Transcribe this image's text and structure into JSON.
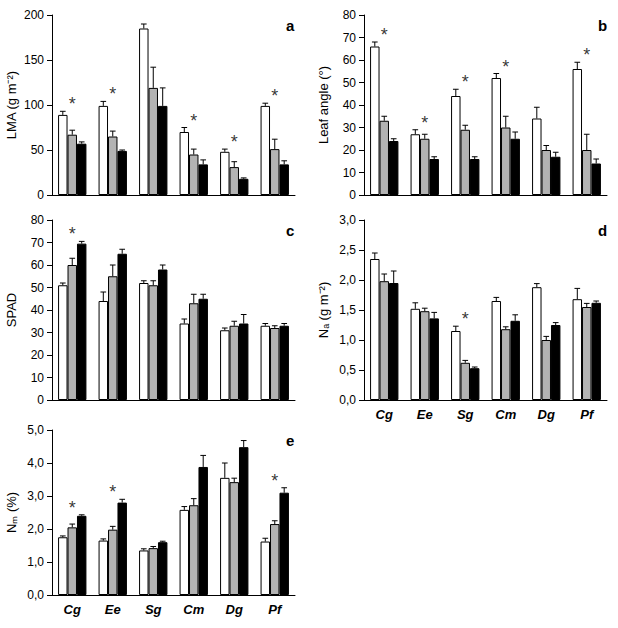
{
  "chart_data": [
    {
      "type": "bar",
      "title": "a",
      "ylabel": "LMA (g m⁻²)",
      "categories": [
        "Cg",
        "Ee",
        "Sg",
        "Cm",
        "Dg",
        "Pf"
      ],
      "series": [
        {
          "color": "#ffffff",
          "values": [
            89,
            99,
            185,
            70,
            48,
            99
          ],
          "errors": [
            4,
            5,
            5,
            5,
            3,
            3
          ]
        },
        {
          "color": "#b3b3b3",
          "values": [
            67,
            65,
            119,
            45,
            31,
            51
          ],
          "errors": [
            5,
            6,
            23,
            6,
            6,
            11
          ]
        },
        {
          "color": "#000000",
          "values": [
            57,
            49,
            99,
            34,
            18,
            34
          ],
          "errors": [
            2,
            1,
            20,
            5,
            1,
            4
          ]
        }
      ],
      "annotations": [
        {
          "category": "Cg",
          "text": "*"
        },
        {
          "category": "Ee",
          "text": "*"
        },
        {
          "category": "Cm",
          "text": "*"
        },
        {
          "category": "Dg",
          "text": "*"
        },
        {
          "category": "Pf",
          "text": "*"
        }
      ],
      "ylim": [
        0,
        200
      ],
      "yticks": [
        0,
        50,
        100,
        150,
        200
      ],
      "grid": false,
      "tick_labels": "y"
    },
    {
      "type": "bar",
      "title": "b",
      "ylabel": "Leaf angle (°)",
      "categories": [
        "Cg",
        "Ee",
        "Sg",
        "Cm",
        "Dg",
        "Pf"
      ],
      "series": [
        {
          "color": "#ffffff",
          "values": [
            66,
            27,
            44,
            52,
            34,
            56
          ],
          "errors": [
            2,
            2,
            3,
            2,
            5,
            3
          ]
        },
        {
          "color": "#b3b3b3",
          "values": [
            33,
            25,
            29,
            30,
            20,
            20
          ],
          "errors": [
            2,
            2,
            2,
            5,
            2,
            7
          ]
        },
        {
          "color": "#000000",
          "values": [
            24,
            16,
            16,
            25,
            17,
            14
          ],
          "errors": [
            1,
            1,
            1,
            3,
            2,
            2
          ]
        }
      ],
      "annotations": [
        {
          "category": "Cg",
          "text": "*"
        },
        {
          "category": "Ee",
          "text": "*"
        },
        {
          "category": "Sg",
          "text": "*"
        },
        {
          "category": "Cm",
          "text": "*"
        },
        {
          "category": "Pf",
          "text": "*"
        }
      ],
      "ylim": [
        0,
        80
      ],
      "yticks": [
        0,
        10,
        20,
        30,
        40,
        50,
        60,
        70,
        80
      ],
      "grid": false,
      "tick_labels": "y"
    },
    {
      "type": "bar",
      "title": "c",
      "ylabel": "SPAD",
      "categories": [
        "Cg",
        "Ee",
        "Sg",
        "Cm",
        "Dg",
        "Pf"
      ],
      "series": [
        {
          "color": "#ffffff",
          "values": [
            51,
            44,
            52,
            34,
            31,
            33
          ],
          "errors": [
            1,
            4,
            1,
            2,
            1,
            1
          ]
        },
        {
          "color": "#b3b3b3",
          "values": [
            60,
            55,
            51,
            43,
            33,
            32
          ],
          "errors": [
            3,
            5,
            2,
            4,
            2,
            1
          ]
        },
        {
          "color": "#000000",
          "values": [
            69.5,
            65,
            58,
            45,
            34,
            33
          ],
          "errors": [
            1,
            2,
            2,
            2,
            4,
            1
          ]
        }
      ],
      "annotations": [
        {
          "category": "Cg",
          "text": "*"
        }
      ],
      "ylim": [
        0,
        80
      ],
      "yticks": [
        0,
        10,
        20,
        30,
        40,
        50,
        60,
        70,
        80
      ],
      "grid": false,
      "tick_labels": "y"
    },
    {
      "type": "bar",
      "title": "d",
      "ylabel": "Nₐ (g m⁻²)",
      "categories": [
        "Cg",
        "Ee",
        "Sg",
        "Cm",
        "Dg",
        "Pf"
      ],
      "series": [
        {
          "color": "#ffffff",
          "values": [
            2.35,
            1.52,
            1.15,
            1.65,
            1.88,
            1.68
          ],
          "errors": [
            0.1,
            0.1,
            0.08,
            0.06,
            0.06,
            0.18
          ]
        },
        {
          "color": "#b3b3b3",
          "values": [
            1.98,
            1.48,
            0.62,
            1.18,
            1.0,
            1.55
          ],
          "errors": [
            0.12,
            0.05,
            0.04,
            0.04,
            0.06,
            0.06
          ]
        },
        {
          "color": "#000000",
          "values": [
            1.95,
            1.36,
            0.53,
            1.32,
            1.25,
            1.62
          ],
          "errors": [
            0.2,
            0.1,
            0.02,
            0.1,
            0.04,
            0.03
          ]
        }
      ],
      "annotations": [
        {
          "category": "Sg",
          "text": "*"
        }
      ],
      "ylim": [
        0,
        3
      ],
      "yticks": [
        {
          "value": 0,
          "label": "0,0"
        },
        {
          "value": 0.5,
          "label": "0,5"
        },
        {
          "value": 1,
          "label": "1,0"
        },
        {
          "value": 1.5,
          "label": "1,5"
        },
        {
          "value": 2,
          "label": "2,0"
        },
        {
          "value": 2.5,
          "label": "2,5"
        },
        {
          "value": 3,
          "label": "3,0"
        }
      ],
      "grid": false
    },
    {
      "type": "bar",
      "title": "e",
      "ylabel": "Nₘ (%)",
      "categories": [
        "Cg",
        "Ee",
        "Sg",
        "Cm",
        "Dg",
        "Pf"
      ],
      "series": [
        {
          "color": "#ffffff",
          "values": [
            1.75,
            1.65,
            1.35,
            2.58,
            3.55,
            1.62
          ],
          "errors": [
            0.04,
            0.05,
            0.05,
            0.1,
            0.45,
            0.1
          ]
        },
        {
          "color": "#b3b3b3",
          "values": [
            2.05,
            1.98,
            1.42,
            2.72,
            3.42,
            2.15
          ],
          "errors": [
            0.1,
            0.1,
            0.05,
            0.2,
            0.12,
            0.1
          ]
        },
        {
          "color": "#000000",
          "values": [
            2.4,
            2.8,
            1.6,
            3.88,
            4.48,
            3.1
          ],
          "errors": [
            0.03,
            0.1,
            0.03,
            0.35,
            0.2,
            0.15
          ]
        }
      ],
      "annotations": [
        {
          "category": "Cg",
          "text": "*"
        },
        {
          "category": "Ee",
          "text": "*"
        },
        {
          "category": "Pf",
          "text": "*"
        }
      ],
      "ylim": [
        0,
        5
      ],
      "yticks": [
        {
          "value": 0,
          "label": "0,0"
        },
        {
          "value": 1,
          "label": "1,0"
        },
        {
          "value": 2,
          "label": "2,0"
        },
        {
          "value": 3,
          "label": "3,0"
        },
        {
          "value": 4,
          "label": "4,0"
        },
        {
          "value": 5,
          "label": "5,0"
        }
      ],
      "grid": false
    }
  ]
}
